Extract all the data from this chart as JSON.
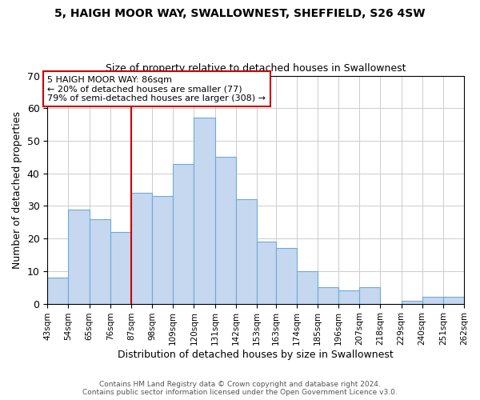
{
  "title": "5, HAIGH MOOR WAY, SWALLOWNEST, SHEFFIELD, S26 4SW",
  "subtitle": "Size of property relative to detached houses in Swallownest",
  "xlabel": "Distribution of detached houses by size in Swallownest",
  "ylabel": "Number of detached properties",
  "bar_color": "#c5d8f0",
  "bar_edge_color": "#6eaad4",
  "bin_edges": [
    43,
    54,
    65,
    76,
    87,
    98,
    109,
    120,
    131,
    142,
    153,
    163,
    174,
    185,
    196,
    207,
    218,
    229,
    240,
    251,
    262
  ],
  "bin_labels": [
    "43sqm",
    "54sqm",
    "65sqm",
    "76sqm",
    "87sqm",
    "98sqm",
    "109sqm",
    "120sqm",
    "131sqm",
    "142sqm",
    "153sqm",
    "163sqm",
    "174sqm",
    "185sqm",
    "196sqm",
    "207sqm",
    "218sqm",
    "229sqm",
    "240sqm",
    "251sqm",
    "262sqm"
  ],
  "counts": [
    8,
    29,
    26,
    22,
    34,
    33,
    43,
    57,
    45,
    32,
    19,
    17,
    10,
    5,
    4,
    5,
    0,
    1,
    2,
    2
  ],
  "vline_x": 87,
  "vline_color": "#cc0000",
  "annotation_line1": "5 HAIGH MOOR WAY: 86sqm",
  "annotation_line2": "← 20% of detached houses are smaller (77)",
  "annotation_line3": "79% of semi-detached houses are larger (308) →",
  "annotation_box_color": "#ffffff",
  "annotation_box_edge_color": "#cc0000",
  "ylim": [
    0,
    70
  ],
  "yticks": [
    0,
    10,
    20,
    30,
    40,
    50,
    60,
    70
  ],
  "footnote1": "Contains HM Land Registry data © Crown copyright and database right 2024.",
  "footnote2": "Contains public sector information licensed under the Open Government Licence v3.0.",
  "background_color": "#ffffff",
  "grid_color": "#cccccc",
  "title_fontsize": 10,
  "subtitle_fontsize": 9,
  "xlabel_fontsize": 9,
  "ylabel_fontsize": 9,
  "annotation_fontsize": 8,
  "footnote_fontsize": 6.5
}
